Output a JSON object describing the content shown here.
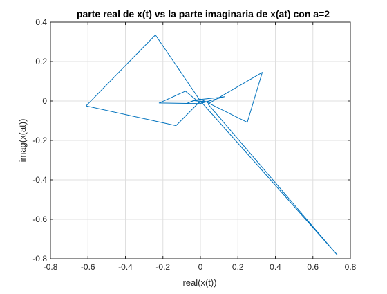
{
  "chart_data": {
    "type": "line",
    "title": "parte real de x(t) vs la parte imaginaria de x(at) con a=2",
    "xlabel": "real(x(t))",
    "ylabel": "imag(x(at))",
    "xlim": [
      -0.8,
      0.8
    ],
    "ylim": [
      -0.8,
      0.4
    ],
    "xticks": [
      -0.8,
      -0.6,
      -0.4,
      -0.2,
      0,
      0.2,
      0.4,
      0.6,
      0.8
    ],
    "xtick_labels": [
      "-0.8",
      "-0.6",
      "-0.4",
      "-0.2",
      "0",
      "0.2",
      "0.4",
      "0.6",
      "0.8"
    ],
    "yticks": [
      -0.8,
      -0.6,
      -0.4,
      -0.2,
      0,
      0.2,
      0.4
    ],
    "ytick_labels": [
      "-0.8",
      "-0.6",
      "-0.4",
      "-0.2",
      "0",
      "0.2",
      "0.4"
    ],
    "grid": true,
    "line_color": "#0072bd",
    "series": [
      {
        "x": [
          0.73,
          0.0,
          -0.24,
          -0.61,
          -0.13,
          0.0,
          0.727,
          0.04,
          0.33,
          0.25,
          0.0,
          -0.04,
          -0.08,
          -0.03,
          0.1,
          0.13,
          0.0,
          -0.08,
          -0.22,
          0.0,
          0.04,
          0.06,
          0.03,
          -0.04,
          -0.02,
          0.02
        ],
        "y": [
          -0.78,
          0.0,
          0.335,
          -0.025,
          -0.125,
          0.0,
          -0.778,
          -0.015,
          0.145,
          -0.108,
          0.01,
          0.0,
          -0.015,
          0.005,
          0.018,
          0.022,
          -0.012,
          0.05,
          -0.01,
          -0.013,
          -0.002,
          0.004,
          -0.004,
          0.003,
          0.0,
          -0.002
        ]
      }
    ]
  }
}
